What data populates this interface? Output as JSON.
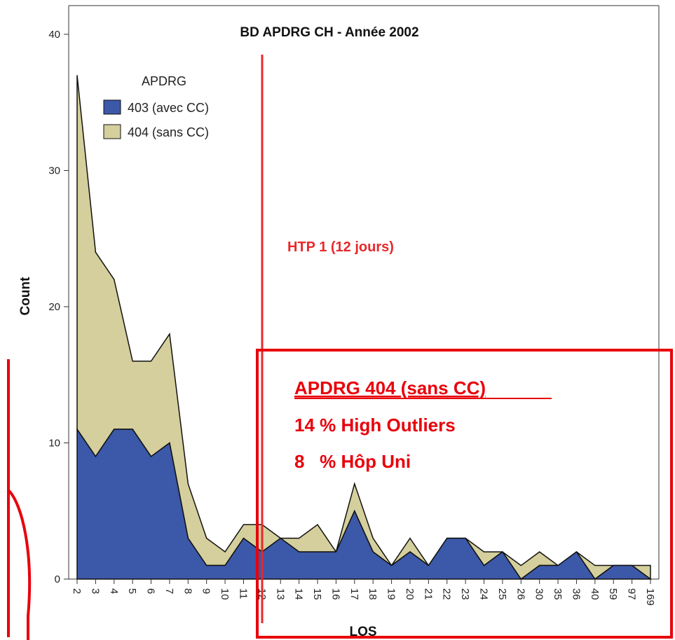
{
  "chart_data": {
    "type": "area",
    "stacked": true,
    "title": "BD APDRG CH - Année 2002",
    "xlabel": "LOS",
    "ylabel": "Count",
    "ylim": [
      0,
      40
    ],
    "yticks": [
      0,
      10,
      20,
      30,
      40
    ],
    "categories": [
      "2",
      "3",
      "4",
      "5",
      "6",
      "7",
      "8",
      "9",
      "10",
      "11",
      "12",
      "13",
      "14",
      "15",
      "16",
      "17",
      "18",
      "19",
      "20",
      "21",
      "22",
      "23",
      "24",
      "25",
      "26",
      "30",
      "35",
      "36",
      "40",
      "59",
      "97",
      "169"
    ],
    "series": [
      {
        "name": "403 (avec CC)",
        "color": "#3c58a8",
        "values": [
          11,
          9,
          11,
          11,
          9,
          10,
          3,
          1,
          1,
          3,
          2,
          3,
          2,
          2,
          2,
          5,
          2,
          1,
          2,
          1,
          3,
          3,
          1,
          2,
          0,
          1,
          1,
          2,
          0,
          1,
          1,
          0
        ]
      },
      {
        "name": "404 (sans CC)",
        "color": "#d4cf9c",
        "values": [
          26,
          15,
          11,
          5,
          7,
          8,
          4,
          2,
          1,
          1,
          2,
          0,
          1,
          2,
          0,
          2,
          1,
          0,
          1,
          0,
          0,
          0,
          1,
          0,
          1,
          1,
          0,
          0,
          1,
          0,
          0,
          1
        ]
      }
    ],
    "legend": {
      "title": "APDRG",
      "placement": "top-left"
    },
    "grid": false
  },
  "annotations": {
    "reference_line": {
      "label": "HTP 1 (12 jours)",
      "x_category": "12",
      "color": "#e8282b"
    },
    "box": {
      "line1": "APDRG 404 (sans CC)",
      "line2": "14 % High Outliers",
      "line3": "8   % Hôp Uni",
      "color": "#e8000b"
    },
    "left_bracket_color": "#e8000b"
  }
}
